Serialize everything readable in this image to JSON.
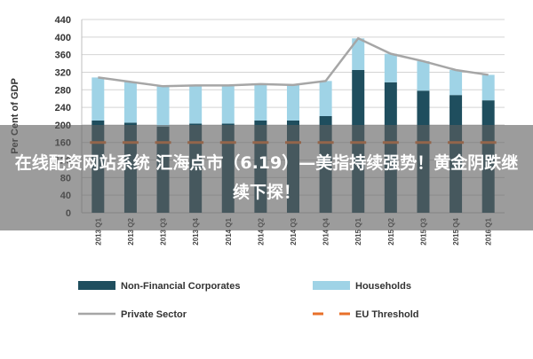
{
  "chart_data": {
    "type": "bar",
    "ylabel": "Per Cent of GDP",
    "ylim": [
      0,
      440
    ],
    "yticks": [
      0,
      40,
      80,
      120,
      160,
      200,
      240,
      280,
      320,
      360,
      400,
      440
    ],
    "grid": true,
    "legend_position": "bottom",
    "categories": [
      "2013 Q1",
      "2013 Q2",
      "2013 Q3",
      "2013 Q4",
      "2014 Q1",
      "2014 Q2",
      "2014 Q3",
      "2014 Q4",
      "2015 Q1",
      "2015 Q2",
      "2015 Q3",
      "2015 Q4",
      "2016 Q1"
    ],
    "series": [
      {
        "name": "Non-Financial Corporates",
        "kind": "stacked-bar",
        "color": "#1f4e5e",
        "values": [
          210,
          205,
          196,
          203,
          203,
          210,
          210,
          220,
          325,
          297,
          278,
          268,
          256
        ]
      },
      {
        "name": "Households",
        "kind": "stacked-bar",
        "color": "#9fd3e6",
        "values": [
          98,
          93,
          92,
          87,
          87,
          83,
          81,
          80,
          72,
          65,
          67,
          57,
          58
        ]
      },
      {
        "name": "Private Sector",
        "kind": "line",
        "color": "#a6a6a6",
        "values": [
          308,
          298,
          288,
          290,
          290,
          293,
          291,
          300,
          397,
          362,
          345,
          325,
          314
        ]
      },
      {
        "name": "EU Threshold",
        "kind": "dashed-line",
        "color": "#e8702a",
        "values": [
          160,
          160,
          160,
          160,
          160,
          160,
          160,
          160,
          160,
          160,
          160,
          160,
          160
        ]
      }
    ]
  },
  "overlay": {
    "text": "在线配资网站系统 汇海点市（6.19）—美指持续强势！黄金阴跌继续下探！"
  }
}
